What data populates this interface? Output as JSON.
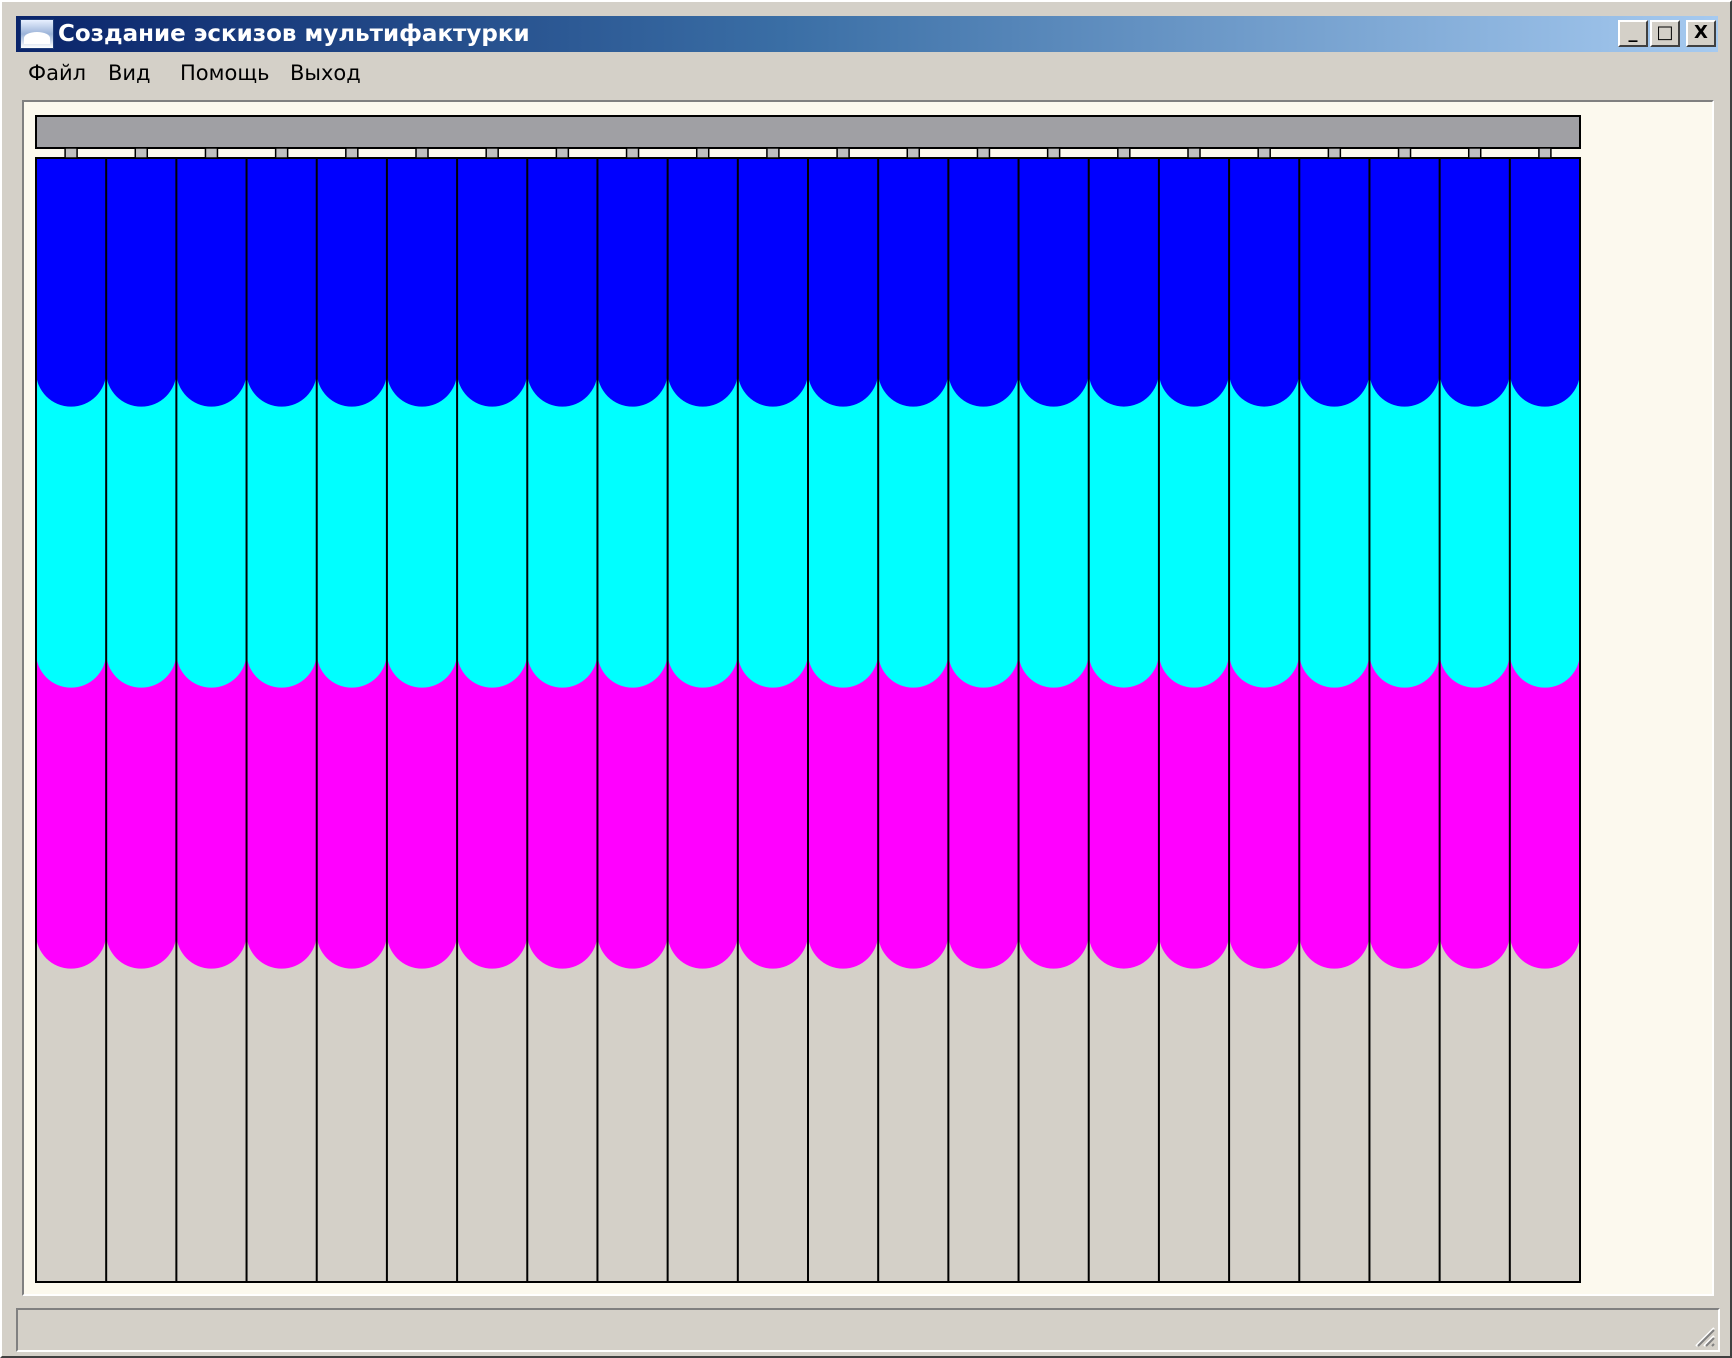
{
  "window": {
    "title": "Создание эскизов мультифактурки",
    "buttons": [
      "_",
      "□",
      "X"
    ]
  },
  "menu": [
    "Файл",
    "Вид",
    "Помощь",
    "Выход"
  ],
  "blinds": {
    "strip_count": 22,
    "bands": [
      {
        "name": "blue",
        "color": "#0000ff",
        "fraction": 0.19
      },
      {
        "name": "cyan",
        "color": "#00ffff",
        "fraction": 0.25
      },
      {
        "name": "magenta",
        "color": "#ff00ff",
        "fraction": 0.25
      }
    ],
    "background_color": "#d4d0c8",
    "rail_color": "#a0a0a4",
    "divider_color": "#000000"
  },
  "status": ""
}
